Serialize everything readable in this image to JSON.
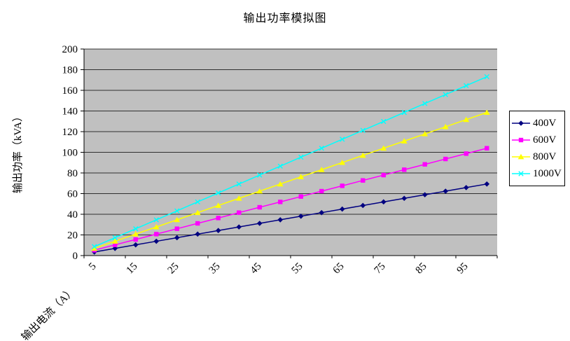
{
  "title": "输出功率模拟图",
  "colors": {
    "plot_background": "#c0c0c0",
    "gridline": "#000000",
    "axis": "#000000",
    "series_400V": "#000080",
    "series_600V": "#ff00ff",
    "series_800V": "#ffff00",
    "series_1000V": "#00ffff"
  },
  "chart_data": {
    "type": "line",
    "title": "输出功率模拟图",
    "xlabel": "输出电流（A）",
    "ylabel": "输出功率（kVA）",
    "ylim": [
      0,
      200
    ],
    "y_ticks": [
      0,
      20,
      40,
      60,
      80,
      100,
      120,
      140,
      160,
      180,
      200
    ],
    "grid": "horizontal",
    "legend_position": "right",
    "plot_bg": "#c0c0c0",
    "x": [
      5,
      10,
      15,
      20,
      25,
      30,
      35,
      40,
      45,
      50,
      55,
      60,
      65,
      70,
      75,
      80,
      85,
      90,
      95,
      100
    ],
    "x_tick_labels": [
      "5",
      "15",
      "25",
      "35",
      "45",
      "55",
      "65",
      "75",
      "85",
      "95"
    ],
    "series": [
      {
        "name": "400V",
        "color": "#000080",
        "marker": "diamond",
        "values": [
          3.46,
          6.93,
          10.39,
          13.86,
          17.32,
          20.78,
          24.25,
          27.71,
          31.18,
          34.64,
          38.11,
          41.57,
          45.03,
          48.5,
          51.96,
          55.43,
          58.89,
          62.35,
          65.82,
          69.28
        ]
      },
      {
        "name": "600V",
        "color": "#ff00ff",
        "marker": "square",
        "values": [
          5.2,
          10.39,
          15.59,
          20.78,
          25.98,
          31.18,
          36.37,
          41.57,
          46.77,
          51.96,
          57.16,
          62.35,
          67.55,
          72.75,
          77.94,
          83.14,
          88.33,
          93.53,
          98.73,
          103.92
        ]
      },
      {
        "name": "800V",
        "color": "#ffff00",
        "marker": "triangle",
        "values": [
          6.93,
          13.86,
          20.78,
          27.71,
          34.64,
          41.57,
          48.5,
          55.43,
          62.35,
          69.28,
          76.21,
          83.14,
          90.07,
          97.0,
          103.92,
          110.85,
          117.78,
          124.71,
          131.64,
          138.56
        ]
      },
      {
        "name": "1000V",
        "color": "#00ffff",
        "marker": "x",
        "values": [
          8.66,
          17.32,
          25.98,
          34.64,
          43.3,
          51.96,
          60.62,
          69.28,
          77.94,
          86.6,
          95.26,
          103.92,
          112.58,
          121.24,
          129.9,
          138.56,
          147.22,
          155.88,
          164.54,
          173.21
        ]
      }
    ]
  }
}
